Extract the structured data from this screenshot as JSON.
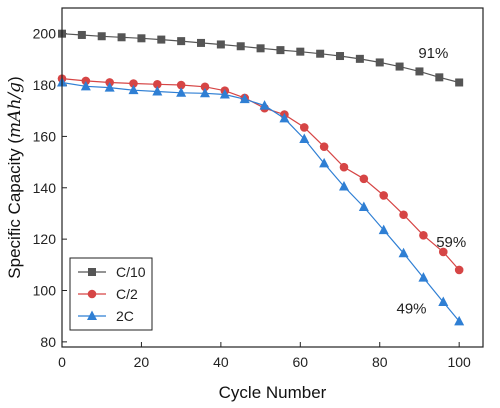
{
  "chart_data": {
    "type": "line",
    "xlabel": "Cycle Number",
    "ylabel_prefix": "Specific Capacity (",
    "ylabel_unit": "mAh/g",
    "ylabel_suffix": ")",
    "xlim": [
      0,
      106
    ],
    "ylim": [
      78,
      210
    ],
    "xticks": [
      0,
      20,
      40,
      60,
      80,
      100
    ],
    "yticks": [
      80,
      100,
      120,
      140,
      160,
      180,
      200
    ],
    "legend_position": "bottom-left",
    "series": [
      {
        "name": "C/10",
        "color": "#555555",
        "marker": "square",
        "x": [
          0,
          5,
          10,
          15,
          20,
          25,
          30,
          35,
          40,
          45,
          50,
          55,
          60,
          65,
          70,
          75,
          80,
          85,
          90,
          95,
          100
        ],
        "y": [
          200,
          199.5,
          199,
          198.6,
          198.2,
          197.7,
          197.1,
          196.4,
          195.8,
          195.1,
          194.3,
          193.6,
          193,
          192.2,
          191.3,
          190.2,
          188.8,
          187.2,
          185.3,
          183,
          181
        ]
      },
      {
        "name": "C/2",
        "color": "#d64545",
        "marker": "circle",
        "x": [
          0,
          6,
          12,
          18,
          24,
          30,
          36,
          41,
          46,
          51,
          56,
          61,
          66,
          71,
          76,
          81,
          86,
          91,
          96,
          100
        ],
        "y": [
          182.5,
          181.6,
          181,
          180.6,
          180.3,
          180,
          179.3,
          177.8,
          175,
          171,
          168.5,
          163.5,
          156,
          148,
          143.5,
          137,
          129.5,
          121.5,
          115,
          108
        ]
      },
      {
        "name": "2C",
        "color": "#2f7fd4",
        "marker": "triangle",
        "x": [
          0,
          6,
          12,
          18,
          24,
          30,
          36,
          41,
          46,
          51,
          56,
          61,
          66,
          71,
          76,
          81,
          86,
          91,
          96,
          100
        ],
        "y": [
          181,
          179.5,
          179,
          178,
          177.5,
          177,
          176.8,
          176.3,
          174.5,
          172,
          167,
          159,
          149.5,
          140.5,
          132.5,
          123.5,
          114.5,
          105,
          95.5,
          88
        ]
      }
    ],
    "annotations": [
      {
        "text": "91%",
        "x": 93.5,
        "y": 190.5
      },
      {
        "text": "59%",
        "x": 98,
        "y": 117
      },
      {
        "text": "49%",
        "x": 88,
        "y": 91
      }
    ]
  }
}
